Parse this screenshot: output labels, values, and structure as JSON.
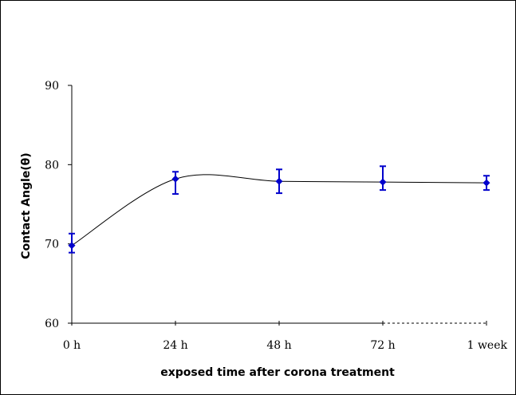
{
  "chart_data": {
    "type": "scatter",
    "title": "",
    "xlabel": "exposed time after corona treatment",
    "ylabel": "Contact Angle(θ)",
    "categories": [
      "0 h",
      "24 h",
      "48 h",
      "72 h",
      "1 week"
    ],
    "ylim": [
      60,
      90
    ],
    "yticks": [
      60,
      70,
      80,
      90
    ],
    "grid": false,
    "legend": "none",
    "smoothed_line": true,
    "series": [
      {
        "values": [
          69.8,
          78.2,
          77.9,
          77.8,
          77.7
        ],
        "error_low": [
          68.9,
          76.3,
          76.4,
          76.8,
          76.8
        ],
        "error_high": [
          71.3,
          79.1,
          79.4,
          79.8,
          78.6
        ],
        "color": "#0000cc"
      }
    ],
    "colors": {
      "axis": "#000000",
      "line": "#000000",
      "marker": "#0000cc",
      "errorbar": "#0000cc"
    }
  }
}
